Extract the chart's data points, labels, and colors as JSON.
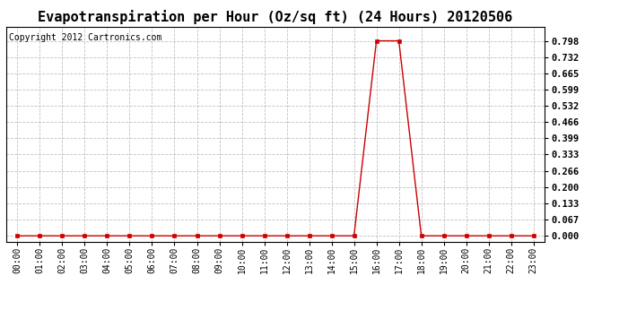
{
  "title": "Evapotranspiration per Hour (Oz/sq ft) (24 Hours) 20120506",
  "copyright_text": "Copyright 2012 Cartronics.com",
  "hours": [
    "00:00",
    "01:00",
    "02:00",
    "03:00",
    "04:00",
    "05:00",
    "06:00",
    "07:00",
    "08:00",
    "09:00",
    "10:00",
    "11:00",
    "12:00",
    "13:00",
    "14:00",
    "15:00",
    "16:00",
    "17:00",
    "18:00",
    "19:00",
    "20:00",
    "21:00",
    "22:00",
    "23:00"
  ],
  "values": [
    0.0,
    0.0,
    0.0,
    0.0,
    0.0,
    0.0,
    0.0,
    0.0,
    0.0,
    0.0,
    0.0,
    0.0,
    0.0,
    0.0,
    0.0,
    0.0,
    0.798,
    0.798,
    0.0,
    0.0,
    0.0,
    0.0,
    0.0,
    0.0
  ],
  "line_color": "#cc0000",
  "marker_color": "#cc0000",
  "bg_color": "#ffffff",
  "plot_bg_color": "#ffffff",
  "grid_color": "#c0c0c0",
  "title_fontsize": 11,
  "yticks": [
    0.0,
    0.067,
    0.133,
    0.2,
    0.266,
    0.333,
    0.399,
    0.466,
    0.532,
    0.599,
    0.665,
    0.732,
    0.798
  ],
  "ylim": [
    -0.025,
    0.855
  ],
  "border_color": "#000000",
  "copyright_fontsize": 7,
  "tick_fontsize": 7,
  "ytick_fontsize": 7.5
}
